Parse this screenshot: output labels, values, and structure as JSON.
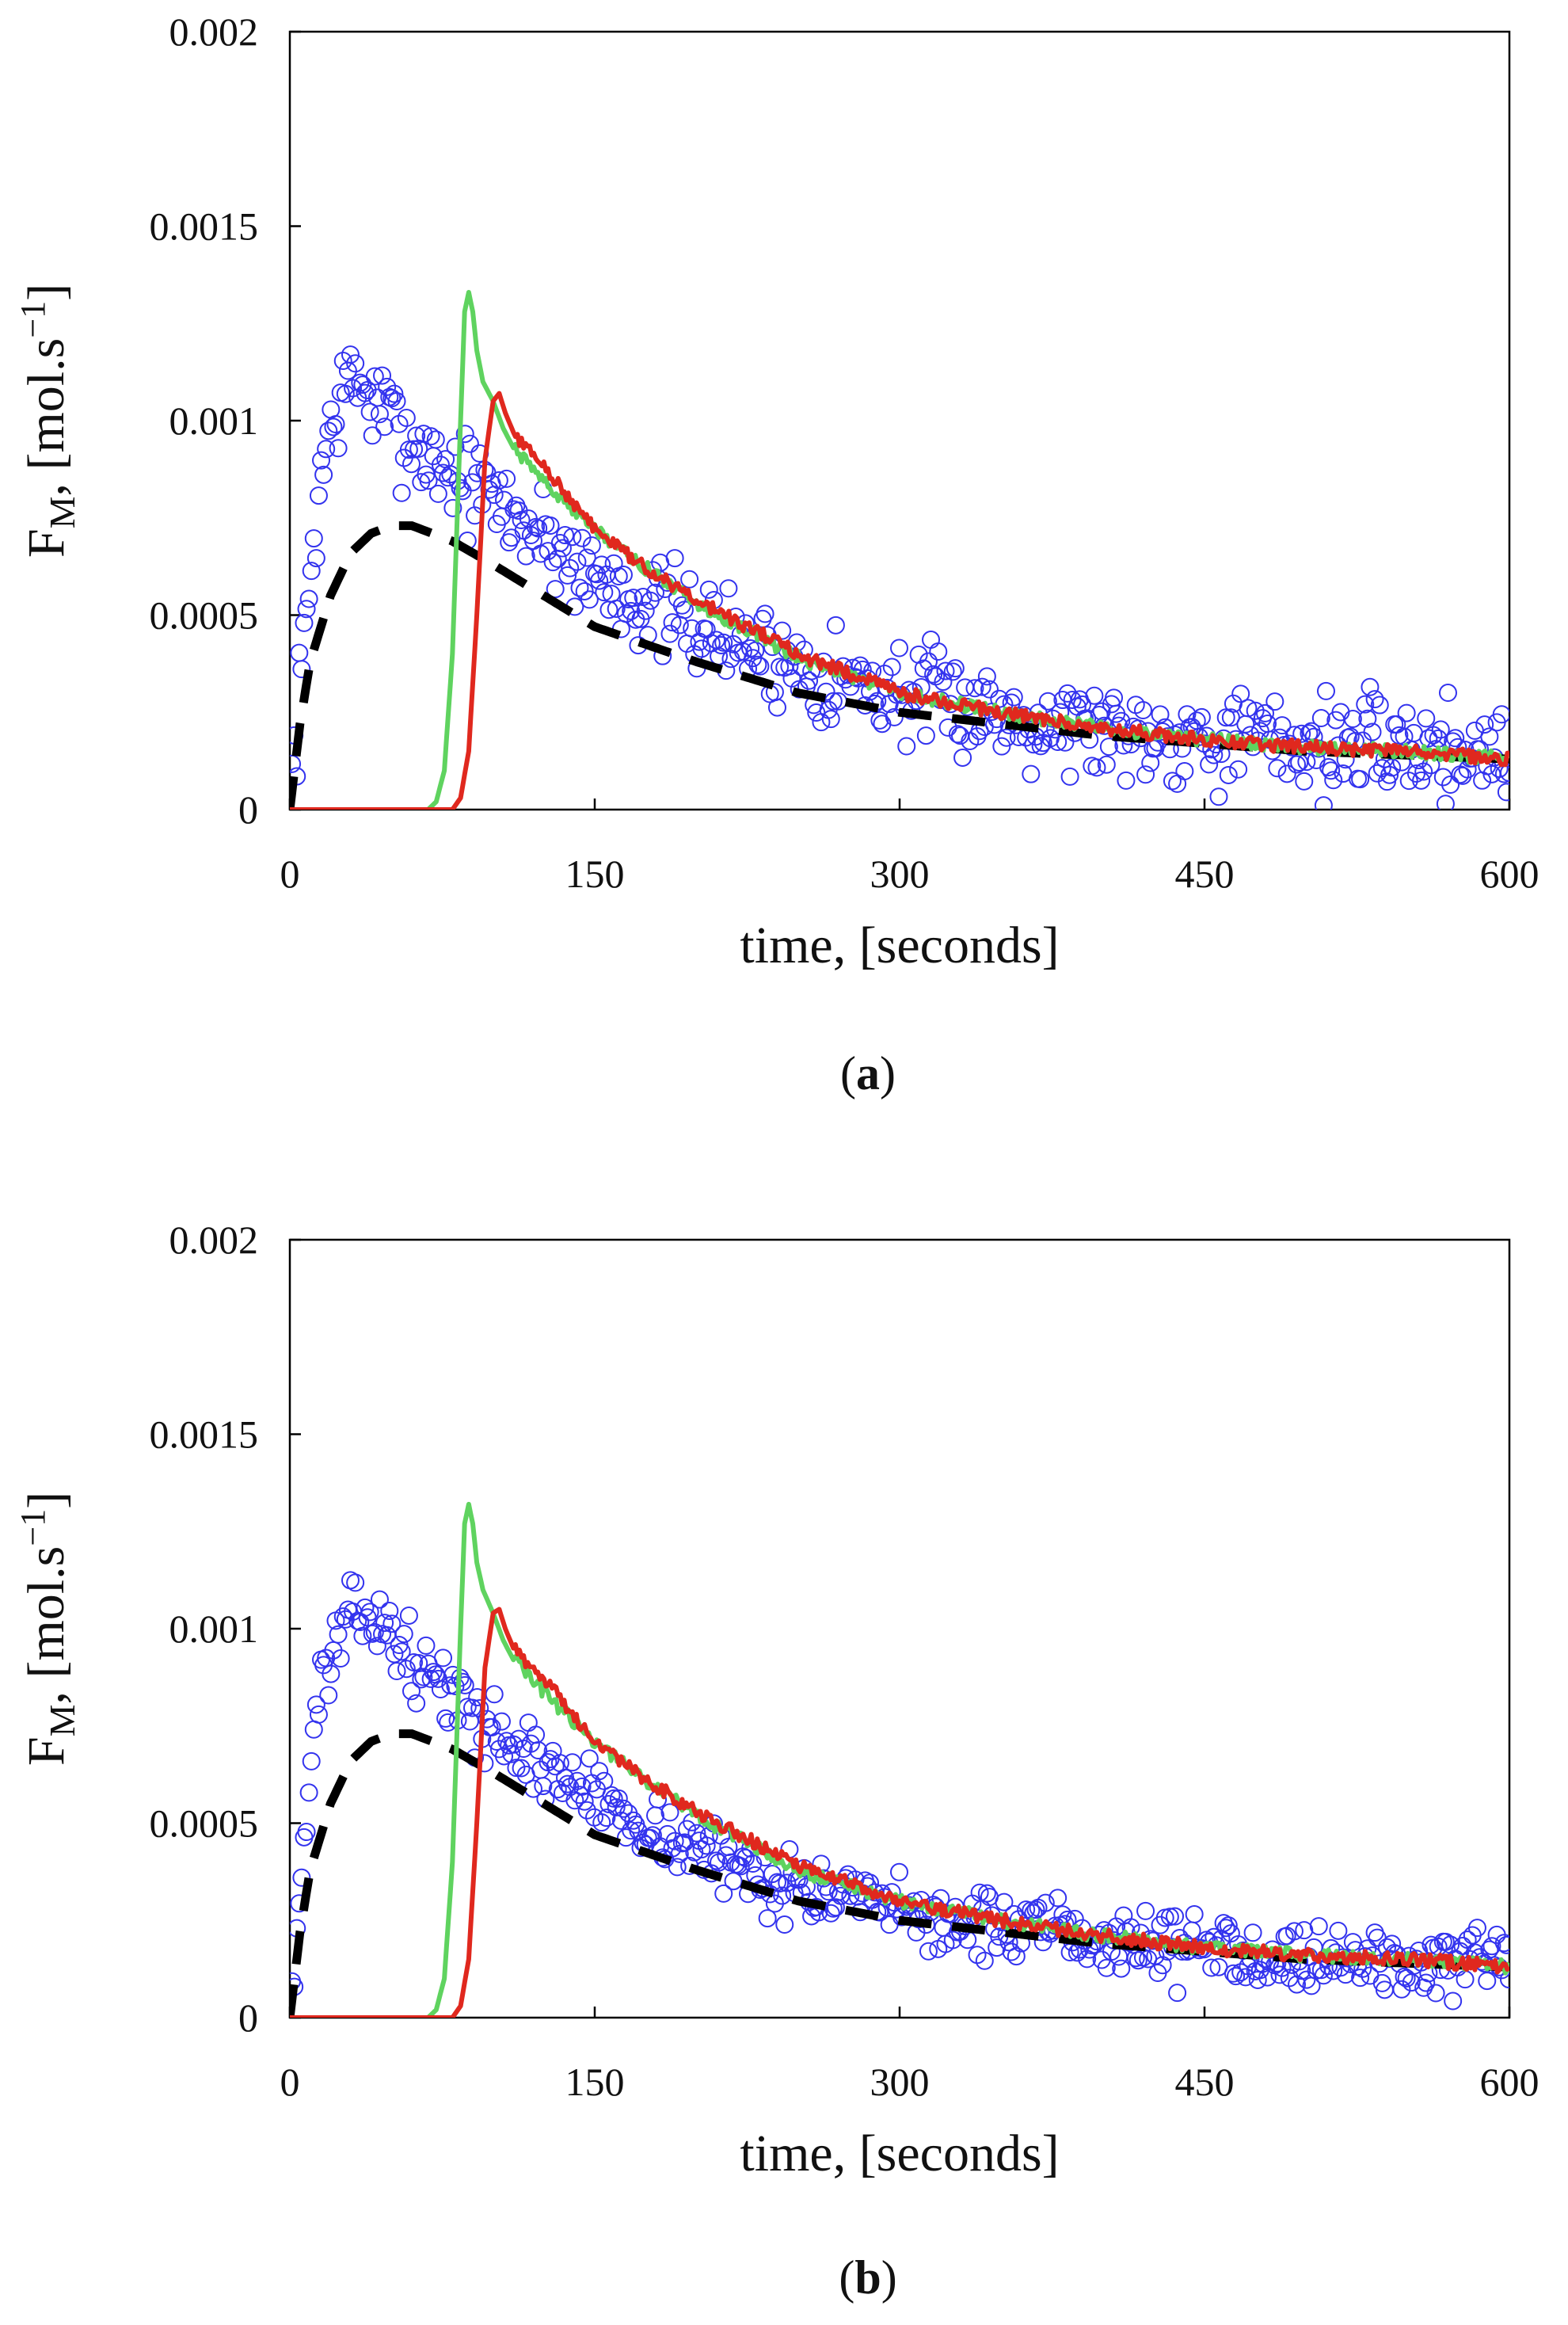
{
  "chart_data": [
    {
      "type": "scatter",
      "panel_label": "a",
      "xlabel": "time, [seconds]",
      "ylabel": {
        "main": "F",
        "sub": "M",
        "rest": ", [mol.s",
        "sup": "−1",
        "close": "]"
      },
      "xlim": [
        0,
        600
      ],
      "ylim": [
        0,
        0.002
      ],
      "x_ticks": [
        "0",
        "150",
        "300",
        "450",
        "600"
      ],
      "y_ticks": [
        "0",
        "0.0005",
        "0.001",
        "0.0015",
        "0.002"
      ],
      "grid": false,
      "seed": 7,
      "colors": {
        "points": "#3333ee",
        "green": "#5fd35f",
        "red": "#e0281e",
        "dashed": "#000000"
      },
      "series": [
        {
          "name": "experimental",
          "kind": "scatter",
          "x": [
            0,
            5,
            10,
            15,
            20,
            25,
            30,
            35,
            40,
            50,
            60,
            70,
            80,
            90,
            100,
            120,
            150,
            180,
            210,
            240,
            270,
            300,
            350,
            400,
            450,
            500,
            550,
            600
          ],
          "y": [
            3e-05,
            0.0003,
            0.0006,
            0.00085,
            0.00098,
            0.00106,
            0.0011,
            0.0011,
            0.00105,
            0.001,
            0.00095,
            0.0009,
            0.00087,
            0.00083,
            0.0008,
            0.00072,
            0.0006,
            0.00052,
            0.00045,
            0.00039,
            0.00034,
            0.0003,
            0.00025,
            0.00021,
            0.00019,
            0.00017,
            0.00016,
            0.00015
          ],
          "noise": 9e-05
        },
        {
          "name": "model-dashed",
          "kind": "dashed",
          "x": [
            0,
            5,
            10,
            20,
            30,
            40,
            50,
            60,
            80,
            100,
            150,
            200,
            250,
            300,
            350,
            400,
            450,
            500,
            550,
            600
          ],
          "y": [
            0,
            0.00022,
            0.00038,
            0.00055,
            0.00066,
            0.00071,
            0.00073,
            0.00073,
            0.00069,
            0.00063,
            0.00047,
            0.00038,
            0.0003,
            0.00025,
            0.00022,
            0.00019,
            0.00017,
            0.00015,
            0.00014,
            0.00013
          ]
        },
        {
          "name": "model-green",
          "kind": "line",
          "x": [
            0,
            68,
            72,
            76,
            80,
            84,
            86,
            88,
            90,
            92,
            95,
            100,
            105,
            110,
            130,
            150,
            170,
            200,
            250,
            300,
            350,
            400,
            450,
            500,
            550,
            600
          ],
          "y": [
            0,
            0,
            2e-05,
            0.0001,
            0.0004,
            0.001,
            0.00128,
            0.00133,
            0.00128,
            0.00118,
            0.0011,
            0.00105,
            0.00098,
            0.00093,
            0.00082,
            0.00072,
            0.00064,
            0.00053,
            0.00039,
            0.0003,
            0.00025,
            0.00021,
            0.00018,
            0.00016,
            0.00015,
            0.00013
          ]
        },
        {
          "name": "model-red",
          "kind": "line",
          "x": [
            0,
            80,
            84,
            88,
            92,
            96,
            100,
            103,
            106,
            110,
            130,
            150,
            170,
            200,
            250,
            300,
            350,
            400,
            450,
            500,
            550,
            600
          ],
          "y": [
            0,
            0,
            3e-05,
            0.00015,
            0.0005,
            0.0009,
            0.00105,
            0.00107,
            0.00102,
            0.00097,
            0.00085,
            0.00072,
            0.00064,
            0.00054,
            0.0004,
            0.0003,
            0.00025,
            0.00021,
            0.00018,
            0.00016,
            0.00015,
            0.00013
          ]
        }
      ]
    },
    {
      "type": "scatter",
      "panel_label": "b",
      "xlabel": "time, [seconds]",
      "ylabel": {
        "main": "F",
        "sub": "M",
        "rest": ", [mol.s",
        "sup": "−1",
        "close": "]"
      },
      "xlim": [
        0,
        600
      ],
      "ylim": [
        0,
        0.002
      ],
      "x_ticks": [
        "0",
        "150",
        "300",
        "450",
        "600"
      ],
      "y_ticks": [
        "0",
        "0.0005",
        "0.001",
        "0.0015",
        "0.002"
      ],
      "grid": false,
      "seed": 13,
      "colors": {
        "points": "#3333ee",
        "green": "#5fd35f",
        "red": "#e0281e",
        "dashed": "#000000"
      },
      "series": [
        {
          "name": "experimental",
          "kind": "scatter",
          "x": [
            0,
            5,
            10,
            15,
            20,
            25,
            30,
            35,
            40,
            50,
            60,
            70,
            80,
            90,
            100,
            120,
            150,
            180,
            210,
            240,
            270,
            300,
            350,
            400,
            450,
            500,
            550,
            600
          ],
          "y": [
            5e-05,
            0.0003,
            0.00065,
            0.00085,
            0.00093,
            0.00098,
            0.00102,
            0.00106,
            0.00103,
            0.00098,
            0.00092,
            0.00087,
            0.00083,
            0.00078,
            0.00074,
            0.00066,
            0.00057,
            0.00048,
            0.00041,
            0.00035,
            0.00031,
            0.00027,
            0.00023,
            0.0002,
            0.00018,
            0.00016,
            0.00014,
            0.00013
          ],
          "noise": 6e-05
        },
        {
          "name": "model-dashed",
          "kind": "dashed",
          "x": [
            0,
            5,
            10,
            20,
            30,
            40,
            50,
            60,
            80,
            100,
            150,
            200,
            250,
            300,
            350,
            400,
            450,
            500,
            550,
            600
          ],
          "y": [
            0,
            0.00022,
            0.00038,
            0.00055,
            0.00066,
            0.00071,
            0.00073,
            0.00073,
            0.00069,
            0.00063,
            0.00047,
            0.00038,
            0.0003,
            0.00025,
            0.00022,
            0.00019,
            0.00017,
            0.00015,
            0.00014,
            0.00013
          ]
        },
        {
          "name": "model-green",
          "kind": "line",
          "x": [
            0,
            68,
            72,
            76,
            80,
            84,
            86,
            88,
            90,
            92,
            95,
            100,
            105,
            110,
            130,
            150,
            170,
            200,
            250,
            300,
            350,
            400,
            450,
            500,
            550,
            600
          ],
          "y": [
            0,
            0,
            2e-05,
            0.0001,
            0.0004,
            0.001,
            0.00127,
            0.00132,
            0.00127,
            0.00117,
            0.0011,
            0.00104,
            0.00097,
            0.00092,
            0.00081,
            0.00071,
            0.00063,
            0.00052,
            0.00038,
            0.0003,
            0.00025,
            0.00021,
            0.00018,
            0.00016,
            0.00015,
            0.00013
          ]
        },
        {
          "name": "model-red",
          "kind": "line",
          "x": [
            0,
            80,
            84,
            88,
            92,
            96,
            100,
            103,
            106,
            110,
            130,
            150,
            170,
            200,
            250,
            300,
            350,
            400,
            450,
            500,
            550,
            600
          ],
          "y": [
            0,
            0,
            3e-05,
            0.00015,
            0.0005,
            0.0009,
            0.00104,
            0.00105,
            0.001,
            0.00095,
            0.00084,
            0.00071,
            0.00063,
            0.00053,
            0.00039,
            0.0003,
            0.00025,
            0.00021,
            0.00018,
            0.00016,
            0.00015,
            0.00013
          ]
        }
      ]
    }
  ]
}
